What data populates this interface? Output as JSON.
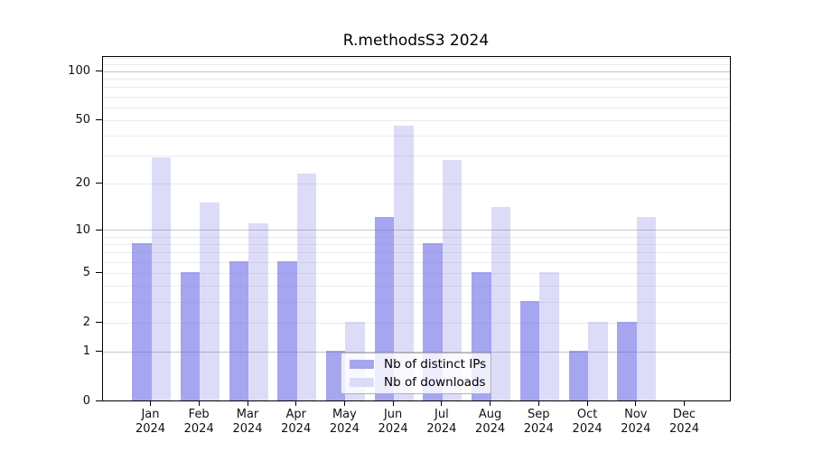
{
  "title": "R.methodsS3 2024",
  "chart_data": {
    "type": "bar",
    "title": "R.methodsS3 2024",
    "categories": [
      "Jan 2024",
      "Feb 2024",
      "Mar 2024",
      "Apr 2024",
      "May 2024",
      "Jun 2024",
      "Jul 2024",
      "Aug 2024",
      "Sep 2024",
      "Oct 2024",
      "Nov 2024",
      "Dec 2024"
    ],
    "x_tick_months": [
      "Jan",
      "Feb",
      "Mar",
      "Apr",
      "May",
      "Jun",
      "Jul",
      "Aug",
      "Sep",
      "Oct",
      "Nov",
      "Dec"
    ],
    "x_tick_year": "2024",
    "series": [
      {
        "name": "Nb of distinct IPs",
        "color": "#a5a5f0",
        "fill_rgba": "rgba(110,110,231,0.62)",
        "values": [
          8,
          5,
          6,
          6,
          1,
          12,
          8,
          5,
          3,
          1,
          2,
          0
        ]
      },
      {
        "name": "Nb of downloads",
        "color": "#dcdcf9",
        "fill_rgba": "rgba(110,110,231,0.24)",
        "values": [
          29,
          15,
          11,
          23,
          2,
          46,
          28,
          14,
          5,
          2,
          12,
          0
        ]
      }
    ],
    "yscale": "log10(value+1)",
    "ylim": [
      0,
      124
    ],
    "yticks": [
      100,
      50,
      20,
      10,
      5,
      2,
      1,
      0
    ],
    "gridlines": {
      "major": [
        1,
        10,
        100
      ],
      "minor": [
        2,
        3,
        4,
        5,
        6,
        7,
        8,
        9,
        20,
        30,
        40,
        50,
        60,
        70,
        80,
        90,
        110,
        120
      ]
    },
    "grid": "horizontal",
    "legend_position": "lower center",
    "xlabel": "",
    "ylabel": ""
  },
  "legend": {
    "items": [
      {
        "label": "Nb of distinct IPs",
        "color": "#a5a5f0"
      },
      {
        "label": "Nb of downloads",
        "color": "#dcdcf9"
      }
    ]
  }
}
